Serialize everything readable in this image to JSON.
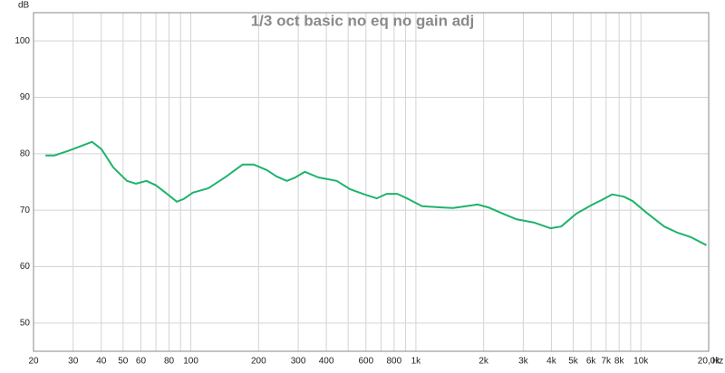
{
  "chart_data": {
    "type": "line",
    "title": "1/3 oct basic no eq no gain adj",
    "y_label": "dB",
    "x_label": "Hz",
    "xscale": "log",
    "grid": true,
    "xlim": [
      20,
      20000
    ],
    "ylim": [
      45,
      105
    ],
    "yticks": [
      50,
      60,
      70,
      80,
      90,
      100
    ],
    "xticks": [
      20,
      30,
      40,
      50,
      60,
      80,
      100,
      200,
      300,
      400,
      600,
      800,
      {
        "value": 1000,
        "label": "1k"
      },
      {
        "value": 2000,
        "label": "2k"
      },
      {
        "value": 3000,
        "label": "3k"
      },
      {
        "value": 4000,
        "label": "4k"
      },
      {
        "value": 5000,
        "label": "5k"
      },
      {
        "value": 6000,
        "label": "6k"
      },
      {
        "value": 7000,
        "label": "7k"
      },
      {
        "value": 8000,
        "label": "8k"
      },
      {
        "value": 10000,
        "label": "10k"
      },
      {
        "value": 20000,
        "label": "20,0k"
      }
    ],
    "xminor": [
      70,
      90,
      500,
      700,
      900,
      9000
    ],
    "x": [
      22.6,
      24.8,
      28.5,
      33.6,
      36.4,
      40.1,
      45.2,
      52,
      57.1,
      63.5,
      70,
      78.9,
      86.6,
      93.1,
      102,
      119.6,
      144,
      170,
      190,
      218,
      240,
      267,
      288,
      321,
      369,
      405,
      445,
      511,
      590,
      670,
      741,
      827,
      923,
      1065,
      1300,
      1460,
      1670,
      1880,
      2100,
      2430,
      2790,
      3360,
      3960,
      4420,
      5170,
      6100,
      6700,
      7450,
      8390,
      9200,
      10560,
      12680,
      14560,
      16730,
      19540
    ],
    "series": [
      {
        "color": "#1fb36c",
        "values": [
          79.7,
          79.7,
          80.5,
          81.6,
          82.1,
          80.8,
          77.6,
          75.2,
          74.7,
          75.2,
          74.4,
          72.8,
          71.5,
          72.0,
          73.1,
          73.9,
          76.0,
          78.1,
          78.1,
          77.1,
          76.0,
          75.2,
          75.7,
          76.8,
          75.8,
          75.5,
          75.2,
          73.7,
          72.8,
          72.1,
          72.9,
          72.9,
          72.0,
          70.7,
          70.5,
          70.4,
          70.7,
          71.0,
          70.5,
          69.4,
          68.4,
          67.8,
          66.8,
          67.1,
          69.4,
          71.0,
          71.8,
          72.8,
          72.4,
          71.6,
          69.6,
          67.1,
          66.0,
          65.2,
          63.8
        ]
      }
    ]
  }
}
